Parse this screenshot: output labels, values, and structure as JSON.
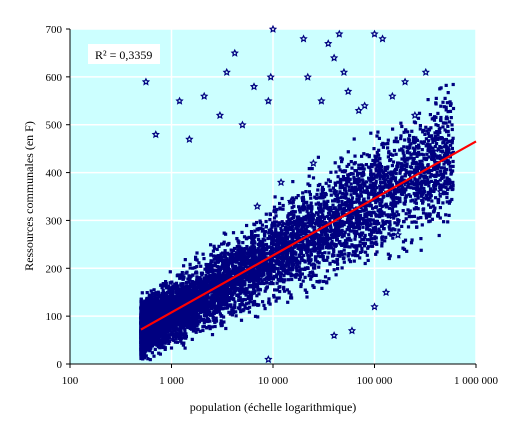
{
  "chart_data": {
    "type": "scatter",
    "title": "",
    "xlabel": "population (échelle logarithmique)",
    "ylabel": "Ressources communales (en F)",
    "x_scale": "log",
    "xlim": [
      100,
      1000000
    ],
    "ylim": [
      0,
      700
    ],
    "x_ticks": [
      100,
      1000,
      10000,
      100000,
      1000000
    ],
    "x_tick_labels": [
      "100",
      "1 000",
      "10 000",
      "100 000",
      "1 000 000"
    ],
    "y_ticks": [
      0,
      100,
      200,
      300,
      400,
      500,
      600,
      700
    ],
    "y_tick_labels": [
      "0",
      "100",
      "200",
      "300",
      "400",
      "500",
      "600",
      "700"
    ],
    "grid": true,
    "legend": false,
    "annotation": "R² = 0,3359",
    "colors": {
      "plot_background": "#ccffff",
      "points": "#000080",
      "trend_line": "#ff0000",
      "grid": "#ffffff"
    },
    "series": [
      {
        "marker": "star",
        "density_summary": [
          {
            "x_range": [
              500,
              1000
            ],
            "y_range": [
              0,
              300
            ],
            "density": "very high"
          },
          {
            "x_range": [
              1000,
              10000
            ],
            "y_range": [
              0,
              350
            ],
            "density": "high"
          },
          {
            "x_range": [
              10000,
              100000
            ],
            "y_range": [
              50,
              500
            ],
            "density": "medium"
          },
          {
            "x_range": [
              100000,
              500000
            ],
            "y_range": [
              200,
              600
            ],
            "density": "low"
          }
        ],
        "values": [
          [
            560,
            590
          ],
          [
            1200,
            550
          ],
          [
            2100,
            560
          ],
          [
            1500,
            470
          ],
          [
            700,
            480
          ],
          [
            3000,
            520
          ],
          [
            3500,
            610
          ],
          [
            4200,
            650
          ],
          [
            5000,
            500
          ],
          [
            6500,
            580
          ],
          [
            9000,
            550
          ],
          [
            9500,
            600
          ],
          [
            10000,
            700
          ],
          [
            20000,
            680
          ],
          [
            22000,
            600
          ],
          [
            30000,
            550
          ],
          [
            35000,
            670
          ],
          [
            40000,
            640
          ],
          [
            45000,
            690
          ],
          [
            50000,
            610
          ],
          [
            55000,
            570
          ],
          [
            70000,
            530
          ],
          [
            80000,
            540
          ],
          [
            100000,
            690
          ],
          [
            120000,
            680
          ],
          [
            150000,
            560
          ],
          [
            200000,
            590
          ],
          [
            250000,
            520
          ],
          [
            320000,
            610
          ],
          [
            400000,
            450
          ],
          [
            520000,
            440
          ],
          [
            450000,
            360
          ],
          [
            200000,
            370
          ],
          [
            170000,
            270
          ],
          [
            150000,
            310
          ],
          [
            130000,
            150
          ],
          [
            100000,
            120
          ],
          [
            60000,
            70
          ],
          [
            40000,
            60
          ],
          [
            9000,
            10
          ],
          [
            15000,
            340
          ],
          [
            25000,
            420
          ],
          [
            18000,
            300
          ],
          [
            12000,
            380
          ],
          [
            7000,
            330
          ]
        ]
      }
    ],
    "trend_line": {
      "form": "logarithmic",
      "points": [
        [
          500,
          72
        ],
        [
          1000000,
          465
        ]
      ]
    }
  }
}
